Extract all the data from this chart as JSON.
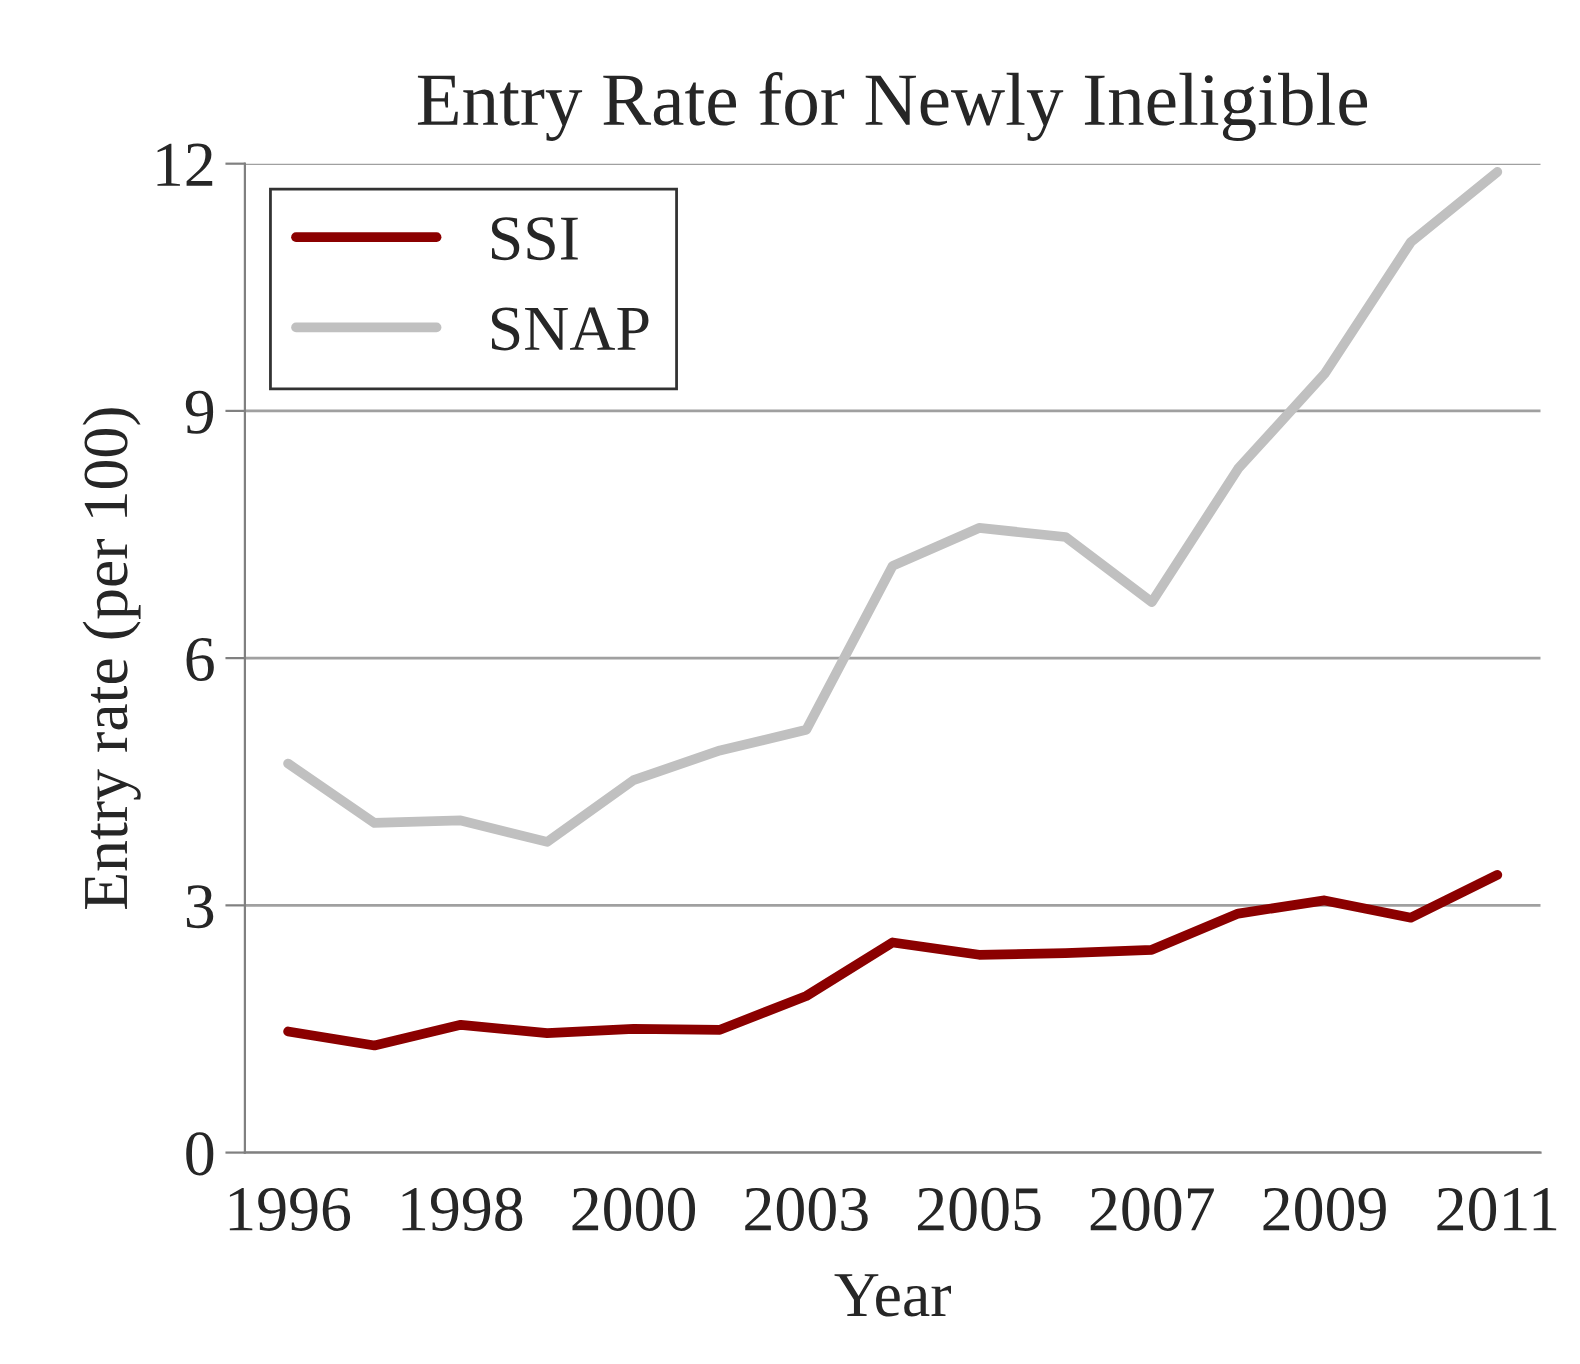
{
  "chart_data": {
    "type": "line",
    "title": "Entry Rate for Newly Ineligible",
    "xlabel": "Year",
    "ylabel": "Entry rate (per 100)",
    "categories": [
      "1996",
      null,
      "1998",
      null,
      "2000",
      null,
      "2003",
      null,
      "2005",
      null,
      "2007",
      null,
      "2009",
      null,
      "2011"
    ],
    "series": [
      {
        "name": "SSI",
        "color": "#8b0000",
        "values": [
          1.47,
          1.3,
          1.55,
          1.45,
          1.5,
          1.49,
          1.9,
          2.55,
          2.4,
          2.42,
          2.46,
          2.9,
          3.06,
          2.85,
          3.37
        ]
      },
      {
        "name": "SNAP",
        "color": "#c0c0c0",
        "values": [
          4.72,
          4.0,
          4.03,
          3.77,
          4.52,
          4.88,
          5.13,
          7.12,
          7.58,
          7.47,
          6.68,
          8.3,
          9.45,
          11.05,
          11.9
        ]
      }
    ],
    "ylim": [
      0,
      12
    ],
    "yticks": [
      0,
      3,
      6,
      9,
      12
    ],
    "grid": "y",
    "legend": "top left",
    "marker": "none",
    "line_style": "solid"
  }
}
